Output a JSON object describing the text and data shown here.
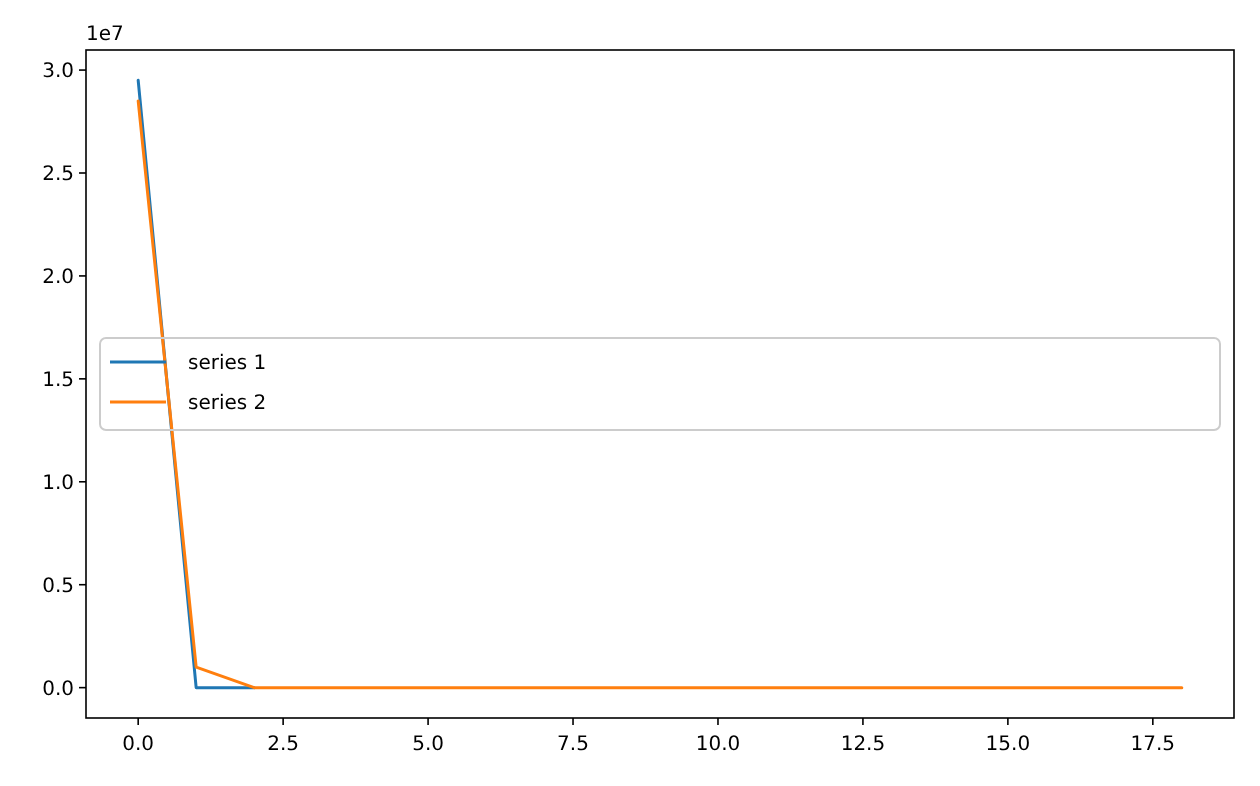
{
  "chart_data": {
    "type": "line",
    "x": [
      0,
      1,
      2,
      3,
      4,
      5,
      6,
      7,
      8,
      9,
      10,
      11,
      12,
      13,
      14,
      15,
      16,
      17,
      18
    ],
    "series": [
      {
        "name": "series 1",
        "color": "#1f77b4",
        "values": [
          2.95,
          0,
          0,
          null,
          null,
          null,
          null,
          null,
          null,
          null,
          null,
          null,
          null,
          null,
          null,
          null,
          null,
          null,
          null
        ]
      },
      {
        "name": "series 2",
        "color": "#ff7f0e",
        "values": [
          2.85,
          0.1,
          0,
          0,
          0,
          0,
          0,
          0,
          0,
          0,
          0,
          0,
          0,
          0,
          0,
          0,
          0,
          0,
          0
        ]
      }
    ],
    "xlim": [
      -0.9,
      18.9
    ],
    "ylim": [
      -0.1475,
      3.0975
    ],
    "xticks": [
      {
        "value": 0,
        "label": "0.0"
      },
      2.5,
      {
        "value": 5,
        "label": "5.0"
      },
      7.5,
      {
        "value": 10,
        "label": "10.0"
      },
      12.5,
      {
        "value": 15,
        "label": "15.0"
      },
      17.5
    ],
    "yticks": [
      {
        "value": 0,
        "label": "0.0"
      },
      0.5,
      {
        "value": 1,
        "label": "1.0"
      },
      1.5,
      {
        "value": 2,
        "label": "2.0"
      },
      2.5,
      {
        "value": 3,
        "label": "3.0"
      }
    ],
    "annotations": [
      "1e7"
    ],
    "legend": "left",
    "grid": false,
    "marker": "none",
    "line_style": "solid"
  }
}
